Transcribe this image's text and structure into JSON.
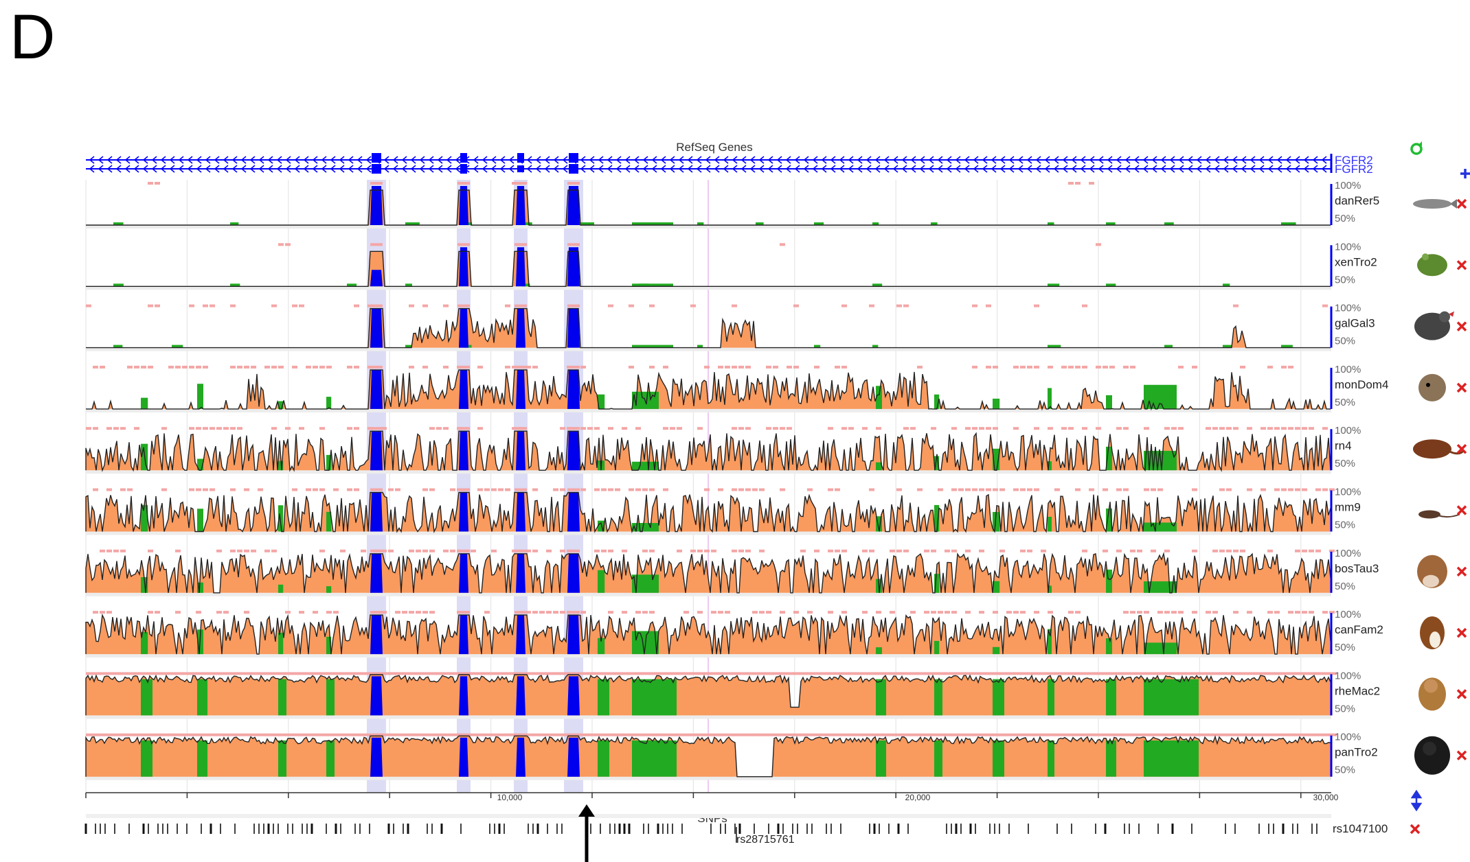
{
  "panel_letter": "D",
  "refseq": {
    "title": "RefSeq Genes",
    "gene_labels": [
      "FGFR2",
      "FGFR2"
    ]
  },
  "tracks": [
    {
      "name": "danRer5",
      "pct_top": "100%",
      "pct_mid": "50%",
      "profile": "sparse",
      "species_icon": "zebrafish-icon"
    },
    {
      "name": "xenTro2",
      "pct_top": "100%",
      "pct_mid": "50%",
      "profile": "sparse",
      "species_icon": "frog-icon"
    },
    {
      "name": "galGal3",
      "pct_top": "100%",
      "pct_mid": "50%",
      "profile": "chicken",
      "species_icon": "chicken-icon"
    },
    {
      "name": "monDom4",
      "pct_top": "100%",
      "pct_mid": "50%",
      "profile": "opossum",
      "species_icon": "opossum-icon"
    },
    {
      "name": "rn4",
      "pct_top": "100%",
      "pct_mid": "50%",
      "profile": "rodent",
      "species_icon": "rat-icon"
    },
    {
      "name": "mm9",
      "pct_top": "100%",
      "pct_mid": "50%",
      "profile": "rodent",
      "species_icon": "mouse-icon"
    },
    {
      "name": "bosTau3",
      "pct_top": "100%",
      "pct_mid": "50%",
      "profile": "mammal",
      "species_icon": "cow-icon"
    },
    {
      "name": "canFam2",
      "pct_top": "100%",
      "pct_mid": "50%",
      "profile": "mammal",
      "species_icon": "dog-icon"
    },
    {
      "name": "rheMac2",
      "pct_top": "100%",
      "pct_mid": "50%",
      "profile": "primate",
      "species_icon": "macaque-icon"
    },
    {
      "name": "panTro2",
      "pct_top": "100%",
      "pct_mid": "50%",
      "profile": "primate",
      "species_icon": "chimp-icon"
    }
  ],
  "ruler": {
    "labels": [
      "10,000",
      "20,000",
      "30,000"
    ]
  },
  "snps": {
    "title": "SNPs",
    "id_right": "rs1047100",
    "id_marked": "rs28715761"
  },
  "colors": {
    "gene": "#0000ff",
    "refseq_label": "#3333ff",
    "exon_highlight": "#dcdcf5",
    "conserved_fill": "#f99a5e",
    "utr_fill": "#22aa22",
    "exon_fill": "#0000ee",
    "ecr_bar": "#f4a6a6",
    "remove_x": "#dd2222",
    "add_plus": "#2233dd",
    "refresh": "#22bb33"
  },
  "icons": {
    "refresh": "refresh-icon",
    "add": "add-track-icon",
    "remove": "remove-track-icon",
    "move": "move-track-icon"
  }
}
